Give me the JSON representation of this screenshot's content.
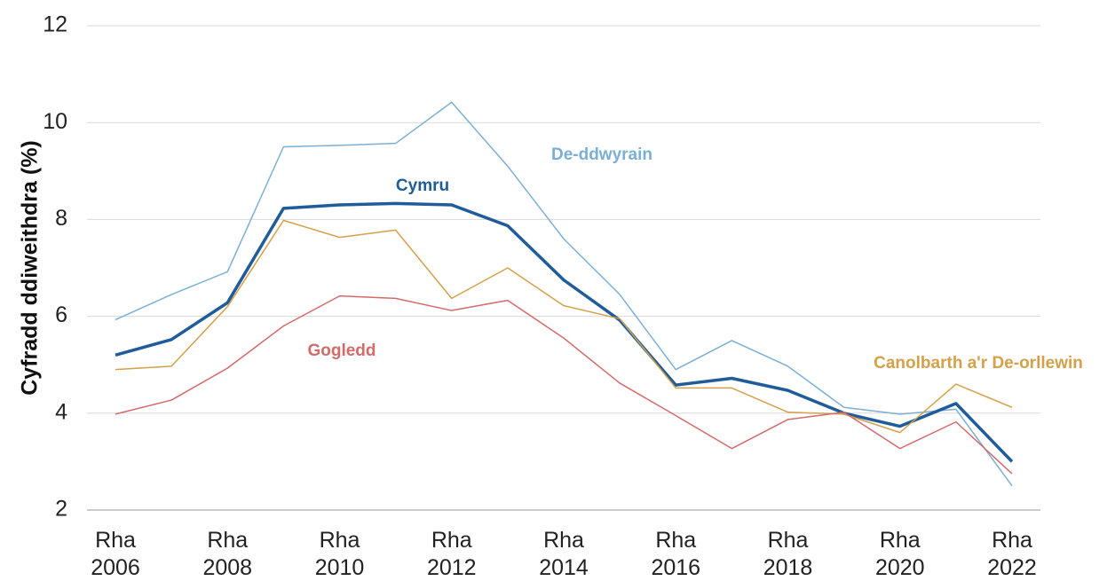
{
  "chart_data": {
    "type": "line",
    "ylabel": "Cyfradd ddiweithdra (%)",
    "categories": [
      "Rha 2006",
      null,
      "Rha 2008",
      null,
      "Rha 2010",
      null,
      "Rha 2012",
      null,
      "Rha 2014",
      null,
      "Rha 2016",
      null,
      "Rha 2018",
      null,
      "Rha 2020",
      null,
      "Rha 2022"
    ],
    "series": [
      {
        "name": "De-ddwyrain",
        "color": "#7bafd4",
        "values": [
          5.93,
          6.45,
          6.92,
          9.5,
          9.53,
          9.57,
          10.42,
          9.1,
          7.6,
          6.45,
          4.9,
          5.5,
          4.97,
          4.12,
          3.98,
          4.08,
          2.5
        ]
      },
      {
        "name": "Cymru",
        "color": "#1f5c99",
        "values": [
          5.2,
          5.52,
          6.28,
          8.23,
          8.3,
          8.33,
          8.3,
          7.87,
          6.75,
          5.92,
          4.58,
          4.72,
          4.47,
          4.0,
          3.73,
          4.2,
          3.0
        ]
      },
      {
        "name": "Canolbarth a'r De-orllewin",
        "color": "#d4a04a",
        "values": [
          4.9,
          4.97,
          6.2,
          7.98,
          7.63,
          7.78,
          6.37,
          7.0,
          6.22,
          5.95,
          4.52,
          4.52,
          4.02,
          3.98,
          3.6,
          4.6,
          4.12
        ]
      },
      {
        "name": "Gogledd",
        "color": "#d46a6a",
        "values": [
          3.98,
          4.27,
          4.93,
          5.8,
          6.42,
          6.37,
          6.12,
          6.33,
          5.55,
          4.62,
          3.95,
          3.27,
          3.87,
          4.02,
          3.27,
          3.82,
          2.75
        ]
      }
    ],
    "ylim": [
      2,
      12
    ],
    "yticks": [
      2,
      4,
      6,
      8,
      10,
      12
    ],
    "grid": true
  }
}
